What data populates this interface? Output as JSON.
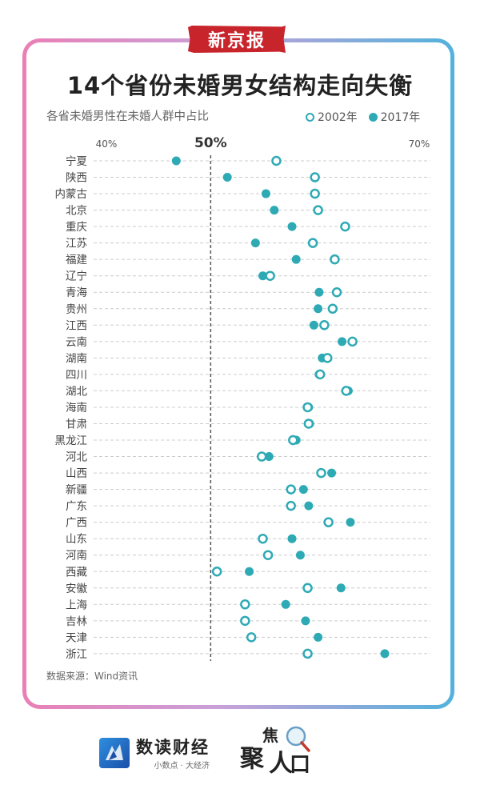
{
  "header": {
    "stamp": "新京报",
    "title": "14个省份未婚男女结构走向失衡",
    "subtitle": "各省未婚男性在未婚人群中占比"
  },
  "legend": {
    "label_2002": "2002年",
    "label_2017": "2017年"
  },
  "colors": {
    "accent": "#2eaab5",
    "grid": "#cccccc",
    "ref_line": "#555555"
  },
  "chart_data": {
    "type": "dot-plot",
    "title": "14个省份未婚男女结构走向失衡",
    "subtitle": "各省未婚男性在未婚人群中占比",
    "tick_labels": [
      "40%",
      "50%",
      "70%"
    ],
    "tick_values": [
      40,
      50,
      70
    ],
    "xlim": [
      40,
      70
    ],
    "reference_line": 50,
    "grid": "horizontal dashed",
    "legend_position": "top-right",
    "series": [
      {
        "name": "2002年",
        "marker": "open-circle"
      },
      {
        "name": "2017年",
        "marker": "filled-circle"
      }
    ],
    "categories": [
      "宁夏",
      "陕西",
      "内蒙古",
      "北京",
      "重庆",
      "江苏",
      "福建",
      "辽宁",
      "青海",
      "贵州",
      "江西",
      "云南",
      "湖南",
      "四川",
      "湖北",
      "海南",
      "甘肃",
      "黑龙江",
      "河北",
      "山西",
      "新疆",
      "广东",
      "广西",
      "山东",
      "河南",
      "西藏",
      "安徽",
      "上海",
      "吉林",
      "天津",
      "浙江"
    ],
    "values_2002": [
      56.3,
      60.0,
      60.0,
      60.3,
      62.9,
      59.8,
      61.9,
      55.7,
      62.1,
      61.7,
      60.9,
      63.6,
      61.2,
      60.5,
      63.0,
      59.3,
      59.4,
      57.9,
      54.9,
      60.6,
      57.7,
      57.7,
      61.3,
      55.0,
      55.5,
      50.6,
      59.3,
      53.3,
      53.3,
      53.9,
      59.3
    ],
    "values_2017": [
      46.7,
      51.6,
      55.3,
      56.1,
      57.8,
      54.3,
      58.2,
      55.0,
      60.4,
      60.3,
      59.9,
      62.6,
      60.7,
      60.4,
      63.2,
      59.4,
      59.5,
      58.2,
      55.6,
      61.6,
      58.9,
      59.4,
      63.4,
      57.8,
      58.6,
      53.7,
      62.5,
      57.2,
      59.1,
      60.3,
      66.7
    ]
  },
  "footer": {
    "source": "数据来源：Wind资讯",
    "brand_name": "数读财经",
    "brand_tagline": "小数点 · 大经济",
    "logo2_chars": [
      "聚",
      "焦",
      "人",
      "口"
    ]
  }
}
